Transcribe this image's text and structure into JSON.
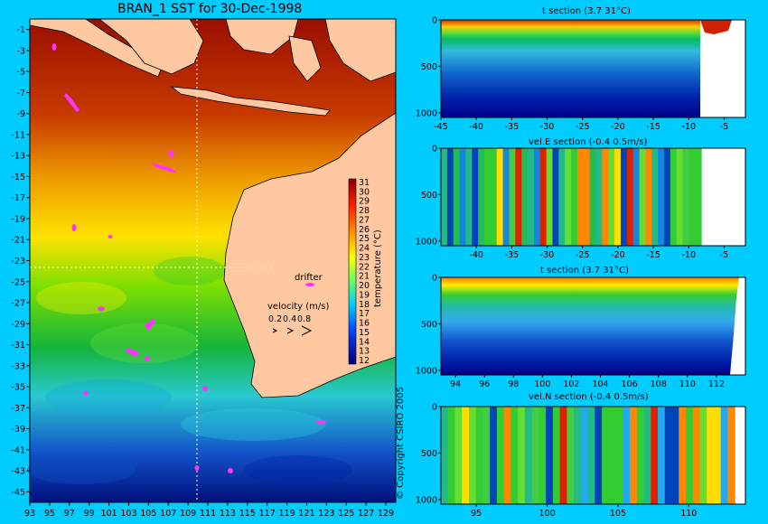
{
  "main_title": "BRAN_1 SST for 30-Dec-1998",
  "copyright": "© Copyright CSIRO 2005",
  "colorbar": {
    "label": "temperature (°C)",
    "ticks": [
      "31",
      "30",
      "29",
      "28",
      "27",
      "26",
      "25",
      "24",
      "23",
      "22",
      "21",
      "20",
      "19",
      "18",
      "17",
      "16",
      "15",
      "14",
      "13",
      "12"
    ]
  },
  "legend": {
    "drifter_label": "drifter",
    "velocity_label": "velocity (m/s)",
    "velocity_ticks": [
      "0.2",
      "0.4",
      "0.8"
    ]
  },
  "colors": {
    "background": "#00ccff",
    "land": "#ffc8a0",
    "drifter": "#ff33ff",
    "section_land": "#ffffff"
  },
  "chart_data": [
    {
      "type": "heatmap",
      "title": "BRAN_1 SST for 30-Dec-1998",
      "x_tick_labels": [
        "93",
        "95",
        "97",
        "99",
        "101",
        "103",
        "105",
        "107",
        "109",
        "111",
        "113",
        "115",
        "117",
        "119",
        "121",
        "123",
        "125",
        "127",
        "129"
      ],
      "y_tick_labels": [
        "-1",
        "-3",
        "-5",
        "-7",
        "-9",
        "-11",
        "-13",
        "-15",
        "-17",
        "-19",
        "-21",
        "-23",
        "-25",
        "-27",
        "-29",
        "-31",
        "-33",
        "-35",
        "-37",
        "-39",
        "-41",
        "-43",
        "-45"
      ],
      "xlim": [
        93,
        130
      ],
      "ylim": [
        -46,
        0
      ],
      "colorbar_range": [
        12,
        31
      ],
      "section_lines": {
        "longitude": 110.5,
        "latitude": -23.5
      }
    },
    {
      "type": "heatmap",
      "title": "t section (3.7       31°C)",
      "x_tick_labels": [
        "-45",
        "-40",
        "-35",
        "-30",
        "-25",
        "-20",
        "-15",
        "-10",
        "-5"
      ],
      "y_tick_labels": [
        "0",
        "500",
        "1000"
      ],
      "xlim": [
        -45,
        -2
      ],
      "ylim": [
        1050,
        0
      ]
    },
    {
      "type": "heatmap",
      "title": "vel.E section (-0.4       0.5m/s)",
      "x_tick_labels": [
        "-40",
        "-35",
        "-30",
        "-25",
        "-20",
        "-15",
        "-10",
        "-5"
      ],
      "y_tick_labels": [
        "0",
        "500",
        "1000"
      ],
      "xlim": [
        -45,
        -2
      ],
      "ylim": [
        1050,
        0
      ]
    },
    {
      "type": "heatmap",
      "title": "t section (3.7       31°C)",
      "x_tick_labels": [
        "94",
        "96",
        "98",
        "100",
        "102",
        "104",
        "106",
        "108",
        "110",
        "112"
      ],
      "y_tick_labels": [
        "0",
        "500",
        "1000"
      ],
      "xlim": [
        93,
        114
      ],
      "ylim": [
        1050,
        0
      ]
    },
    {
      "type": "heatmap",
      "title": "vel.N section (-0.4       0.5m/s)",
      "x_tick_labels": [
        "95",
        "100",
        "105",
        "110"
      ],
      "y_tick_labels": [
        "0",
        "500",
        "1000"
      ],
      "xlim": [
        92.5,
        114
      ],
      "ylim": [
        1050,
        0
      ]
    }
  ]
}
